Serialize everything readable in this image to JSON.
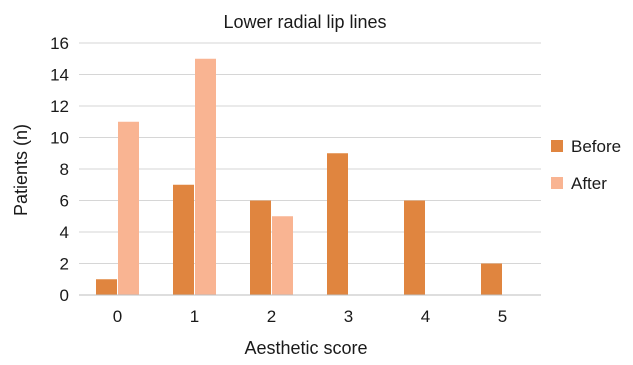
{
  "chart_data": {
    "type": "bar",
    "title": "Lower radial lip lines",
    "xlabel": "Aesthetic score",
    "ylabel": "Patients (n)",
    "categories": [
      "0",
      "1",
      "2",
      "3",
      "4",
      "5"
    ],
    "yticks": [
      "0",
      "2",
      "4",
      "6",
      "8",
      "10",
      "12",
      "14",
      "16"
    ],
    "ylim": [
      0,
      16
    ],
    "grid": true,
    "legend_position": "right",
    "series": [
      {
        "name": "Before",
        "color": "#e0853f",
        "values": [
          1,
          7,
          6,
          9,
          6,
          2
        ]
      },
      {
        "name": "After",
        "color": "#f9b492",
        "values": [
          11,
          15,
          5,
          0,
          0,
          0
        ]
      }
    ]
  }
}
